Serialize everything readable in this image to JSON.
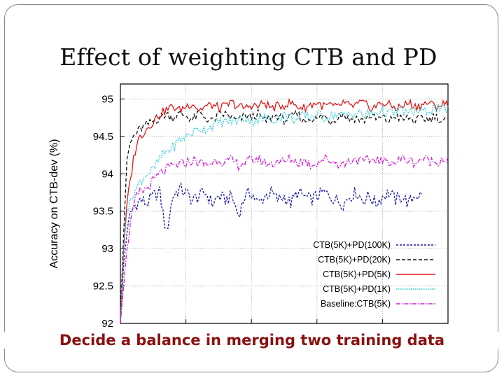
{
  "slide": {
    "title": "Effect of weighting CTB and PD",
    "caption": "Decide a balance in merging two training data"
  },
  "chart_data": {
    "type": "line",
    "title": "",
    "xlabel": "",
    "ylabel": "Accuracy on CTB-dev (%)",
    "ylim": [
      92,
      95.2
    ],
    "yticks": [
      92,
      92.5,
      93,
      93.5,
      94,
      94.5,
      95
    ],
    "ytick_labels": [
      "92",
      "92.5",
      "93",
      "93.5",
      "94",
      "94.5",
      "95"
    ],
    "xlim": [
      0,
      100
    ],
    "grid": true,
    "legend_position": "bottom-right",
    "series": [
      {
        "name": "CTB(5K)+PD(100K)",
        "color": "#1a1aa8",
        "dash": "3,2",
        "x_end": 92,
        "x": [
          0,
          1,
          2,
          3,
          4,
          5,
          6,
          8,
          10,
          12,
          14,
          16,
          18,
          20,
          22,
          24,
          26,
          28,
          30,
          32,
          34,
          36,
          38,
          40,
          42,
          44,
          46,
          48,
          50,
          52,
          54,
          56,
          58,
          60,
          62,
          64,
          66,
          68,
          70,
          72,
          74,
          76,
          78,
          80,
          82,
          84,
          86,
          88,
          90,
          92
        ],
        "y": [
          92.0,
          92.8,
          93.2,
          93.45,
          93.55,
          93.6,
          93.65,
          93.6,
          93.7,
          93.75,
          93.2,
          93.7,
          93.8,
          93.75,
          93.65,
          93.7,
          93.75,
          93.6,
          93.7,
          93.65,
          93.7,
          93.45,
          93.7,
          93.75,
          93.6,
          93.7,
          93.75,
          93.65,
          93.7,
          93.6,
          93.75,
          93.7,
          93.65,
          93.7,
          93.75,
          93.7,
          93.65,
          93.6,
          93.7,
          93.75,
          93.65,
          93.7,
          93.6,
          93.7,
          93.75,
          93.65,
          93.7,
          93.6,
          93.72,
          93.7
        ]
      },
      {
        "name": "CTB(5K)+PD(20K)",
        "color": "#111111",
        "dash": "5,3",
        "x_end": 100,
        "x": [
          0,
          1,
          2,
          3,
          4,
          5,
          6,
          8,
          10,
          12,
          14,
          16,
          18,
          20,
          22,
          24,
          26,
          28,
          30,
          32,
          34,
          36,
          38,
          40,
          42,
          44,
          46,
          48,
          50,
          52,
          54,
          56,
          58,
          60,
          62,
          64,
          66,
          68,
          70,
          72,
          74,
          76,
          78,
          80,
          82,
          84,
          86,
          88,
          90,
          92,
          94,
          96,
          98,
          100
        ],
        "y": [
          92.1,
          93.2,
          94.2,
          94.4,
          94.5,
          94.55,
          94.6,
          94.65,
          94.7,
          94.75,
          94.8,
          94.75,
          94.8,
          94.78,
          94.72,
          94.8,
          94.75,
          94.7,
          94.78,
          94.8,
          94.75,
          94.7,
          94.78,
          94.75,
          94.8,
          94.7,
          94.75,
          94.78,
          94.72,
          94.75,
          94.8,
          94.7,
          94.75,
          94.72,
          94.78,
          94.7,
          94.75,
          94.8,
          94.72,
          94.75,
          94.7,
          94.78,
          94.73,
          94.75,
          94.7,
          94.78,
          94.72,
          94.75,
          94.7,
          94.75,
          94.72,
          94.78,
          94.7,
          94.72
        ]
      },
      {
        "name": "CTB(5K)+PD(5K)",
        "color": "#e01818",
        "dash": "",
        "x_end": 100,
        "x": [
          0,
          1,
          2,
          3,
          4,
          5,
          6,
          8,
          10,
          12,
          14,
          16,
          18,
          20,
          22,
          24,
          26,
          28,
          30,
          32,
          34,
          36,
          38,
          40,
          42,
          44,
          46,
          48,
          50,
          52,
          54,
          56,
          58,
          60,
          62,
          64,
          66,
          68,
          70,
          72,
          74,
          76,
          78,
          80,
          82,
          84,
          86,
          88,
          90,
          92,
          94,
          96,
          98,
          100
        ],
        "y": [
          92.0,
          93.0,
          93.6,
          93.9,
          94.2,
          94.4,
          94.5,
          94.6,
          94.7,
          94.8,
          94.85,
          94.9,
          94.85,
          94.9,
          94.95,
          94.85,
          94.9,
          94.92,
          94.88,
          94.9,
          94.95,
          94.9,
          94.88,
          94.92,
          94.9,
          94.95,
          94.88,
          94.9,
          94.92,
          94.95,
          94.9,
          94.88,
          94.92,
          94.95,
          94.9,
          94.92,
          94.88,
          94.95,
          94.9,
          94.92,
          94.95,
          94.88,
          94.9,
          94.95,
          94.92,
          94.88,
          94.9,
          94.95,
          94.9,
          94.92,
          94.95,
          94.9,
          94.92,
          94.95
        ]
      },
      {
        "name": "CTB(5K)+PD(1K)",
        "color": "#18c8d8",
        "dash": "1.5,1.5",
        "x_end": 100,
        "x": [
          0,
          1,
          2,
          3,
          4,
          5,
          6,
          8,
          10,
          12,
          14,
          16,
          18,
          20,
          22,
          24,
          26,
          28,
          30,
          32,
          34,
          36,
          38,
          40,
          42,
          44,
          46,
          48,
          50,
          52,
          54,
          56,
          58,
          60,
          62,
          64,
          66,
          68,
          70,
          72,
          74,
          76,
          78,
          80,
          82,
          84,
          86,
          88,
          90,
          92,
          94,
          96,
          98,
          100
        ],
        "y": [
          92.0,
          93.0,
          93.5,
          93.6,
          93.75,
          93.8,
          93.9,
          94.0,
          94.05,
          94.2,
          94.3,
          94.35,
          94.45,
          94.5,
          94.55,
          94.6,
          94.6,
          94.65,
          94.68,
          94.7,
          94.7,
          94.72,
          94.75,
          94.7,
          94.73,
          94.75,
          94.72,
          94.75,
          94.78,
          94.75,
          94.72,
          94.78,
          94.75,
          94.8,
          94.75,
          94.78,
          94.8,
          94.77,
          94.8,
          94.82,
          94.78,
          94.8,
          94.82,
          94.85,
          94.8,
          94.82,
          94.85,
          94.8,
          94.85,
          94.82,
          94.85,
          94.88,
          94.85,
          94.88
        ]
      },
      {
        "name": "Baseline:CTB(5K)",
        "color": "#d818d8",
        "dash": "6,2,1.5,2",
        "x_end": 100,
        "x": [
          0,
          1,
          2,
          3,
          4,
          5,
          6,
          8,
          10,
          12,
          14,
          16,
          18,
          20,
          22,
          24,
          26,
          28,
          30,
          32,
          34,
          36,
          38,
          40,
          42,
          44,
          46,
          48,
          50,
          52,
          54,
          56,
          58,
          60,
          62,
          64,
          66,
          68,
          70,
          72,
          74,
          76,
          78,
          80,
          82,
          84,
          86,
          88,
          90,
          92,
          94,
          96,
          98,
          100
        ],
        "y": [
          92.0,
          92.5,
          93.0,
          93.3,
          93.55,
          93.7,
          93.75,
          93.8,
          93.9,
          94.0,
          94.05,
          94.1,
          94.12,
          94.15,
          94.18,
          94.15,
          94.12,
          94.15,
          94.2,
          94.15,
          94.18,
          94.12,
          94.15,
          94.18,
          94.2,
          94.15,
          94.12,
          94.18,
          94.15,
          94.2,
          94.15,
          94.18,
          94.12,
          94.15,
          94.2,
          94.18,
          94.15,
          94.12,
          94.18,
          94.2,
          94.15,
          94.18,
          94.2,
          94.15,
          94.18,
          94.15,
          94.2,
          94.18,
          94.15,
          94.2,
          94.18,
          94.15,
          94.2,
          94.18
        ]
      }
    ]
  }
}
